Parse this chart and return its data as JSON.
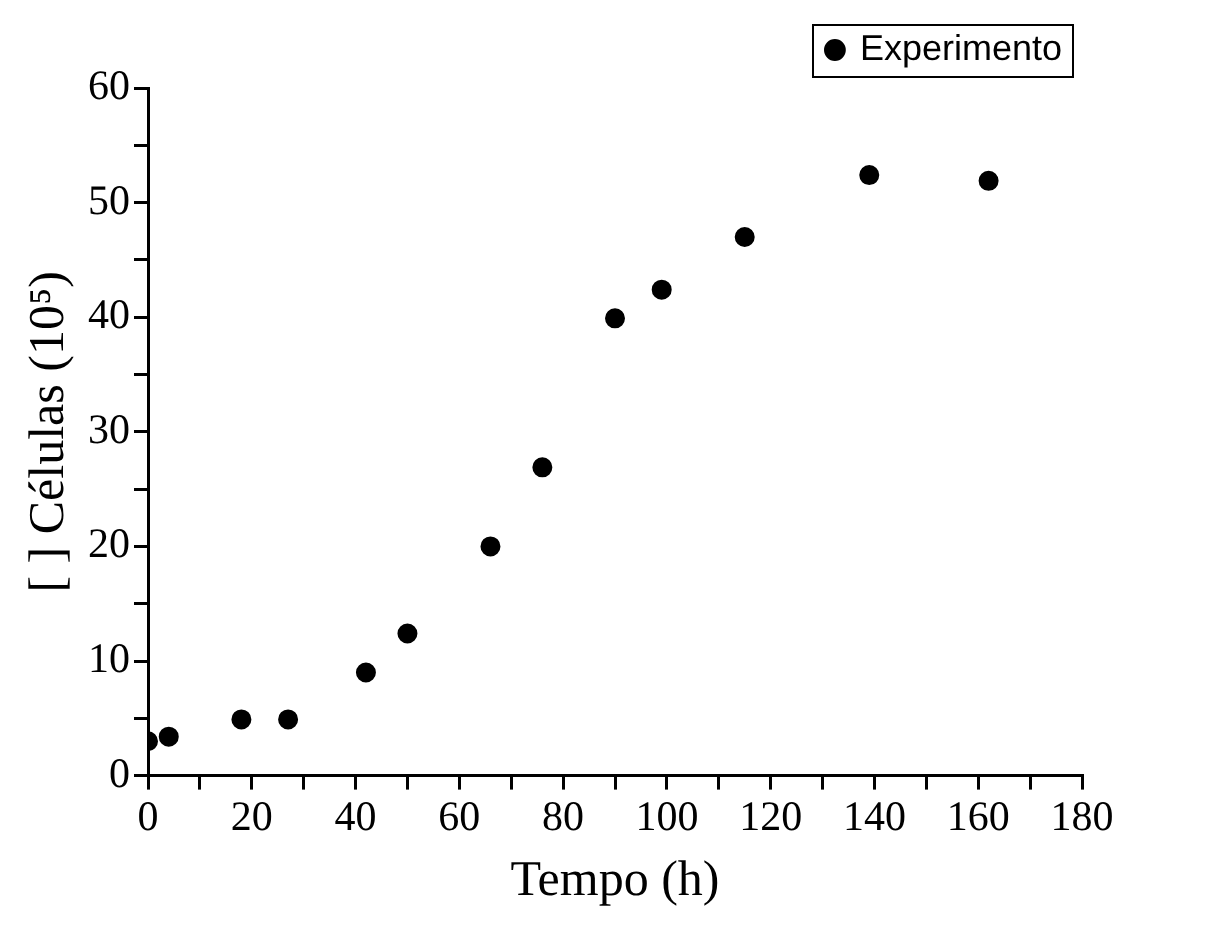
{
  "chart_data": {
    "type": "scatter",
    "xlabel": "Tempo (h)",
    "ylabel": "[ ] Células (10⁵)",
    "series": [
      {
        "name": "Experimento",
        "color": "#000000",
        "x": [
          0,
          4,
          18,
          27,
          42,
          50,
          66,
          76,
          90,
          99,
          115,
          139,
          162
        ],
        "values": [
          3.0,
          3.4,
          4.9,
          4.9,
          9.0,
          12.4,
          20.0,
          26.9,
          39.9,
          42.4,
          47.0,
          52.4,
          51.9
        ]
      }
    ],
    "xlim": [
      0,
      180
    ],
    "ylim": [
      0,
      60
    ],
    "xticks": [
      0,
      {
        "value": 10,
        "label": null
      },
      20,
      {
        "value": 30,
        "label": null
      },
      40,
      {
        "value": 50,
        "label": null
      },
      60,
      {
        "value": 70,
        "label": null
      },
      80,
      {
        "value": 90,
        "label": null
      },
      100,
      {
        "value": 110,
        "label": null
      },
      120,
      {
        "value": 130,
        "label": null
      },
      140,
      {
        "value": 150,
        "label": null
      },
      160,
      {
        "value": 170,
        "label": null
      },
      180
    ],
    "yticks": [
      0,
      {
        "value": 5,
        "label": null
      },
      10,
      {
        "value": 15,
        "label": null
      },
      20,
      {
        "value": 25,
        "label": null
      },
      30,
      {
        "value": 35,
        "label": null
      },
      40,
      {
        "value": 45,
        "label": null
      },
      50,
      {
        "value": 55,
        "label": null
      },
      60
    ],
    "grid": false,
    "legend": "top right",
    "marker": "circle"
  }
}
